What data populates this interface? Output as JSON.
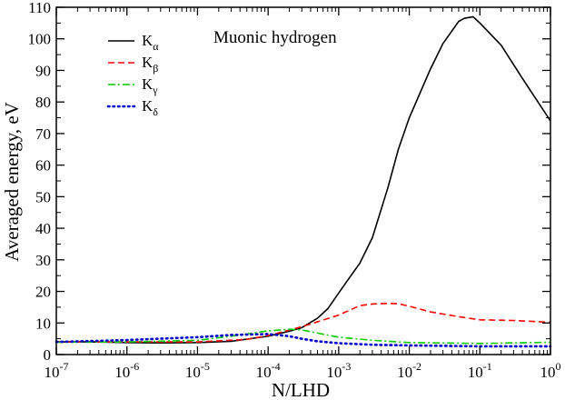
{
  "chart_data": {
    "type": "line",
    "annotation": "Muonic hydrogen",
    "xlabel": "N/LHD",
    "ylabel": "Averaged energy, eV",
    "x_scale": "log",
    "xlim": [
      1e-07,
      1
    ],
    "ylim": [
      0,
      110
    ],
    "grid": false,
    "legend_position": "top-left",
    "x_ticks": [
      {
        "base": "10",
        "exp": "-7",
        "value": 1e-07
      },
      {
        "base": "10",
        "exp": "-6",
        "value": 1e-06
      },
      {
        "base": "10",
        "exp": "-5",
        "value": 1e-05
      },
      {
        "base": "10",
        "exp": "-4",
        "value": 0.0001
      },
      {
        "base": "10",
        "exp": "-3",
        "value": 0.001
      },
      {
        "base": "10",
        "exp": "-2",
        "value": 0.01
      },
      {
        "base": "10",
        "exp": "-1",
        "value": 0.1
      },
      {
        "base": "10",
        "exp": "0",
        "value": 1
      }
    ],
    "y_ticks": [
      0,
      10,
      20,
      30,
      40,
      50,
      60,
      70,
      80,
      90,
      100,
      110
    ],
    "series": [
      {
        "name": "K",
        "subscript": "α",
        "color": "#000000",
        "dash": "solid",
        "x": [
          1e-07,
          3e-07,
          1e-06,
          3e-06,
          1e-05,
          3e-05,
          0.0001,
          0.0002,
          0.0003,
          0.0005,
          0.0007,
          0.001,
          0.002,
          0.003,
          0.005,
          0.007,
          0.01,
          0.02,
          0.03,
          0.05,
          0.06,
          0.08,
          0.1,
          0.2,
          0.4,
          1
        ],
        "y": [
          4,
          4,
          3.8,
          3.7,
          3.8,
          4.2,
          5.8,
          7.4,
          8.5,
          11.5,
          14.5,
          19.5,
          29,
          37,
          53,
          65,
          75,
          90.5,
          98.5,
          105.5,
          106.5,
          107,
          105,
          98,
          87.5,
          74
        ]
      },
      {
        "name": "K",
        "subscript": "β",
        "color": "#ff0000",
        "dash": "dashed",
        "x": [
          1e-07,
          1e-06,
          1e-05,
          5e-05,
          0.0001,
          0.0003,
          0.001,
          0.002,
          0.003,
          0.005,
          0.007,
          0.01,
          0.02,
          0.05,
          0.1,
          0.3,
          1
        ],
        "y": [
          4,
          4,
          4,
          4.8,
          6,
          8.8,
          12.5,
          15.5,
          16,
          16.2,
          16.1,
          15.3,
          13.5,
          12,
          11,
          10.8,
          10.2
        ]
      },
      {
        "name": "K",
        "subscript": "γ",
        "color": "#00cc00",
        "dash": "dash-dot",
        "x": [
          1e-07,
          1e-06,
          1e-05,
          3e-05,
          0.0001,
          0.0002,
          0.0003,
          0.0005,
          0.001,
          0.003,
          0.01,
          0.1,
          1
        ],
        "y": [
          3.9,
          4,
          4.5,
          5.8,
          7.5,
          8,
          7.8,
          6.8,
          5.5,
          4.5,
          3.8,
          3.5,
          3.9
        ]
      },
      {
        "name": "K",
        "subscript": "δ",
        "color": "#0000cc",
        "dash": "dotted",
        "x": [
          1e-07,
          1e-06,
          1e-05,
          3e-05,
          0.0001,
          0.0002,
          0.0003,
          0.0005,
          0.001,
          0.003,
          0.01,
          0.1,
          1
        ],
        "y": [
          4,
          4.6,
          5.5,
          6.2,
          6.5,
          5.8,
          5,
          4.2,
          3.6,
          3.1,
          2.9,
          2.6,
          2.6
        ]
      }
    ]
  }
}
